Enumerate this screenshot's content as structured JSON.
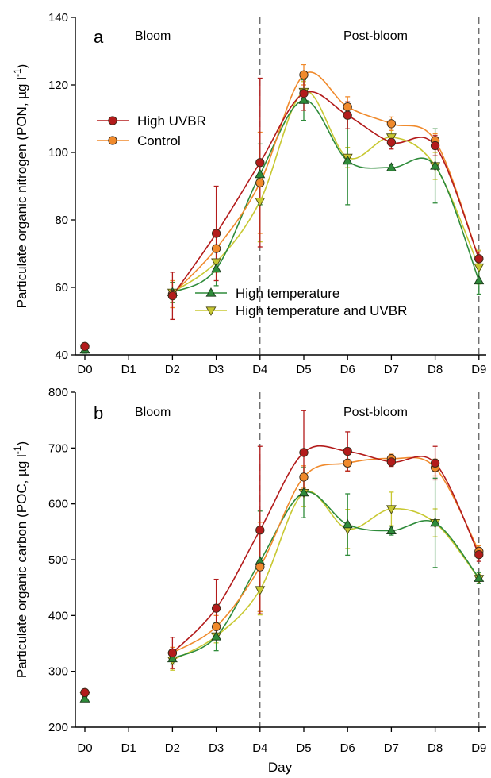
{
  "figure": {
    "xlabel": "Day"
  },
  "colors": {
    "high_uvbr": "#b31b1b",
    "control": "#f08a2c",
    "high_temperature": "#2e8b3a",
    "high_temperature_uvbr": "#c8c832"
  },
  "chart_data": [
    {
      "type": "line",
      "panel": "a",
      "ylabel": "Particulate organic nitrogen (PON, µg l",
      "ylabel_superscript": "-1",
      "ylabel_suffix": ")",
      "ylim": [
        40,
        140
      ],
      "yticks": [
        40,
        60,
        80,
        100,
        120,
        140
      ],
      "categories": [
        "D0",
        "D1",
        "D2",
        "D3",
        "D4",
        "D5",
        "D6",
        "D7",
        "D8",
        "D9"
      ],
      "regions": {
        "bloom": "Bloom",
        "post_bloom": "Post-bloom"
      },
      "vlines_at": [
        "D4",
        "D9"
      ],
      "legend_groups": [
        [
          "High UVBR",
          "Control"
        ],
        [
          "High temperature",
          "High temperature and UVBR"
        ]
      ],
      "series": [
        {
          "name": "High UVBR",
          "marker": "circle",
          "color": "#b31b1b",
          "values": [
            42.5,
            null,
            57.5,
            76,
            97,
            117.5,
            111,
            103,
            102,
            68.5
          ],
          "errors": [
            1,
            null,
            7,
            14,
            25,
            5,
            4,
            2,
            3,
            2
          ]
        },
        {
          "name": "Control",
          "marker": "circle",
          "color": "#f08a2c",
          "values": [
            42.5,
            null,
            58,
            71.5,
            91,
            123,
            113.5,
            108.5,
            103.5,
            68.5
          ],
          "errors": [
            1,
            null,
            4,
            4,
            15,
            3,
            3,
            2,
            2,
            2
          ]
        },
        {
          "name": "High temperature",
          "marker": "triangle-up",
          "color": "#2e8b3a",
          "values": [
            41.5,
            null,
            58.5,
            65.5,
            93.5,
            115.5,
            97.5,
            95.5,
            96,
            62
          ],
          "errors": [
            1,
            null,
            3,
            5,
            9,
            6,
            13,
            1,
            11,
            4
          ]
        },
        {
          "name": "High temperature and UVBR",
          "marker": "triangle-down",
          "color": "#c8c832",
          "values": [
            42,
            null,
            58.5,
            67.5,
            85.5,
            118,
            98.5,
            104.5,
            96,
            66
          ],
          "errors": [
            1,
            null,
            3,
            3,
            12,
            3,
            3,
            2,
            4,
            5
          ]
        }
      ]
    },
    {
      "type": "line",
      "panel": "b",
      "ylabel": "Particulate organic carbon (POC, µg l",
      "ylabel_superscript": "-1",
      "ylabel_suffix": ")",
      "ylim": [
        200,
        800
      ],
      "yticks": [
        200,
        300,
        400,
        500,
        600,
        700,
        800
      ],
      "categories": [
        "D0",
        "D1",
        "D2",
        "D3",
        "D4",
        "D5",
        "D6",
        "D7",
        "D8",
        "D9"
      ],
      "regions": {
        "bloom": "Bloom",
        "post_bloom": "Post-bloom"
      },
      "vlines_at": [
        "D4",
        "D9"
      ],
      "legend_groups": [],
      "series": [
        {
          "name": "High UVBR",
          "marker": "circle",
          "color": "#b31b1b",
          "values": [
            262,
            null,
            333,
            413,
            553,
            692,
            694,
            675,
            673,
            509
          ],
          "errors": [
            5,
            null,
            28,
            52,
            150,
            75,
            35,
            8,
            30,
            12
          ]
        },
        {
          "name": "Control",
          "marker": "circle",
          "color": "#f08a2c",
          "values": [
            262,
            null,
            333,
            380,
            487,
            648,
            673,
            681,
            665,
            515
          ],
          "errors": [
            5,
            null,
            10,
            20,
            80,
            20,
            15,
            8,
            15,
            10
          ]
        },
        {
          "name": "High temperature",
          "marker": "triangle-up",
          "color": "#2e8b3a",
          "values": [
            251,
            null,
            323,
            362,
            497,
            620,
            563,
            552,
            566,
            467
          ],
          "errors": [
            5,
            null,
            10,
            25,
            90,
            45,
            55,
            8,
            80,
            10
          ]
        },
        {
          "name": "High temperature and UVBR",
          "marker": "triangle-down",
          "color": "#c8c832",
          "values": [
            256,
            null,
            320,
            363,
            446,
            620,
            555,
            591,
            566,
            466
          ],
          "errors": [
            5,
            null,
            18,
            12,
            45,
            25,
            35,
            30,
            25,
            8
          ]
        }
      ]
    }
  ]
}
